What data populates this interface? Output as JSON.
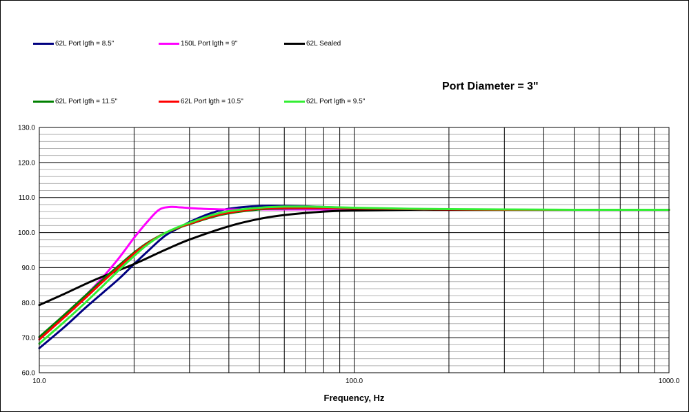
{
  "chart_data": {
    "type": "line",
    "title": "",
    "annotation": "Port Diameter = 3\"",
    "xlabel": "Frequency, Hz",
    "ylabel": "",
    "x_scale": "log",
    "xlim": [
      10,
      1000
    ],
    "ylim": [
      60,
      130
    ],
    "x_tick_labels": [
      "10.0",
      "100.0",
      "1000.0"
    ],
    "y_tick_labels": [
      "130.0",
      "120.0",
      "110.0",
      "100.0",
      "90.0",
      "80.0",
      "70.0",
      "60.0"
    ],
    "grid": true,
    "legend_placement": "top",
    "series": [
      {
        "name": "62L Port lgth = 8.5\"",
        "color": "#000080",
        "x": [
          10,
          12,
          14,
          16,
          18,
          20,
          22,
          25,
          28,
          30,
          35,
          40,
          50,
          60,
          70,
          80,
          100,
          150,
          200,
          300,
          500,
          1000
        ],
        "y": [
          67,
          73,
          78.5,
          83,
          87,
          91,
          94.5,
          99,
          101.5,
          103,
          105.5,
          106.8,
          107.6,
          107.6,
          107.5,
          107.3,
          107,
          106.7,
          106.6,
          106.5,
          106.5,
          106.5
        ]
      },
      {
        "name": "150L Port lgth = 9\"",
        "color": "#FF00FF",
        "x": [
          10,
          12,
          14,
          16,
          18,
          20,
          22,
          24,
          26,
          28,
          30,
          35,
          40,
          50,
          60,
          80,
          100,
          150,
          200,
          300,
          500,
          1000
        ],
        "y": [
          70,
          76.5,
          82,
          87.5,
          93,
          98.5,
          103,
          106.5,
          107.3,
          107.2,
          107,
          106.7,
          106.6,
          106.6,
          106.6,
          106.6,
          106.6,
          106.6,
          106.6,
          106.5,
          106.5,
          106.5
        ]
      },
      {
        "name": "62L Sealed",
        "color": "#000000",
        "x": [
          10,
          12,
          15,
          20,
          25,
          30,
          40,
          50,
          60,
          80,
          100,
          150,
          200,
          300,
          500,
          1000
        ],
        "y": [
          79.3,
          82.5,
          86.5,
          91,
          95,
          98,
          101.8,
          103.9,
          105,
          106,
          106.3,
          106.5,
          106.5,
          106.5,
          106.5,
          106.5
        ]
      },
      {
        "name": "62L Port lgth = 11.5\"",
        "color": "#008000",
        "x": [
          10,
          12,
          14,
          16,
          18,
          20,
          22,
          25,
          28,
          30,
          35,
          40,
          50,
          60,
          70,
          80,
          100,
          150,
          200,
          300,
          500,
          1000
        ],
        "y": [
          70.2,
          76.5,
          82,
          86.8,
          90.8,
          94.3,
          97,
          99.8,
          101.5,
          102.4,
          104.3,
          105.5,
          106.6,
          106.9,
          107,
          107,
          106.9,
          106.7,
          106.6,
          106.5,
          106.5,
          106.5
        ]
      },
      {
        "name": "62L Port lgth = 10.5\"",
        "color": "#FF0000",
        "x": [
          10,
          12,
          14,
          16,
          18,
          20,
          22,
          25,
          28,
          30,
          35,
          40,
          50,
          60,
          70,
          80,
          100,
          150,
          200,
          300,
          500,
          1000
        ],
        "y": [
          69.5,
          75.8,
          81.3,
          86.2,
          90.3,
          94,
          96.8,
          99.8,
          101.6,
          102.5,
          104.5,
          105.7,
          106.8,
          107.1,
          107.1,
          107.1,
          106.9,
          106.7,
          106.6,
          106.5,
          106.5,
          106.5
        ]
      },
      {
        "name": "62L Port lgth = 9.5\"",
        "color": "#33EE33",
        "x": [
          10,
          12,
          14,
          16,
          18,
          20,
          22,
          25,
          28,
          30,
          35,
          40,
          50,
          60,
          70,
          80,
          100,
          150,
          200,
          300,
          500,
          1000
        ],
        "y": [
          68.3,
          74.5,
          80,
          85,
          89.5,
          93.3,
          96.5,
          99.8,
          101.8,
          102.8,
          104.9,
          106.1,
          107.1,
          107.4,
          107.4,
          107.3,
          107.1,
          106.8,
          106.7,
          106.6,
          106.5,
          106.5
        ]
      }
    ]
  }
}
